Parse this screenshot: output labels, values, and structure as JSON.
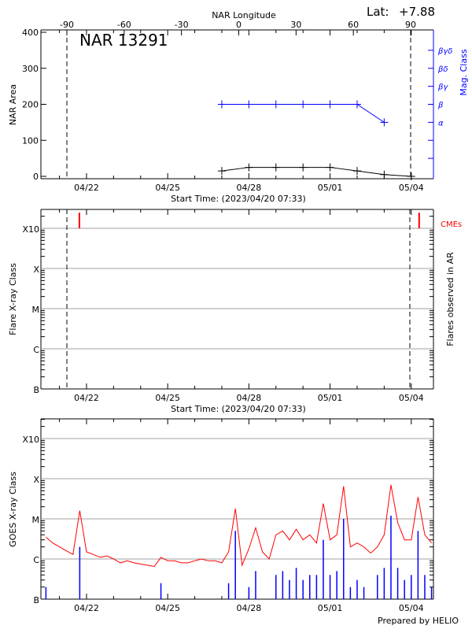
{
  "chart_data": [
    {
      "type": "line",
      "title": "NAR 13291",
      "lat_label": "Lat:",
      "lat_value": "+7.88",
      "top_axis_label": "NAR Longitude",
      "top_ticks": [
        -90,
        -60,
        -30,
        0,
        30,
        60,
        90
      ],
      "xlabel": "Start Time: (2023/04/20 07:33)",
      "x_ticks": [
        "04/22",
        "04/25",
        "04/28",
        "05/01",
        "05/04"
      ],
      "x_tick_dates": [
        "2023-04-22 00:00",
        "2023-04-25 00:00",
        "2023-04-28 00:00",
        "2023-05-01 00:00",
        "2023-05-04 00:00"
      ],
      "xlim": [
        "2023-04-20 07:33",
        "2023-05-04 19:30"
      ],
      "ylabel": "NAR Area",
      "ylim": [
        0,
        400
      ],
      "y_ticks": [
        0,
        100,
        200,
        300,
        400
      ],
      "y2label": "Mag. Class",
      "y2_ticks": [
        {
          "label": "α",
          "value": 150
        },
        {
          "label": "β",
          "value": 200
        },
        {
          "label": "βγ",
          "value": 250
        },
        {
          "label": "βδ",
          "value": 300
        },
        {
          "label": "βγδ",
          "value": 350
        }
      ],
      "limb_longitudes": [
        -90,
        90
      ],
      "series": [
        {
          "color": "#000000",
          "x": [
            "2023-04-27 00:00",
            "2023-04-28 00:00",
            "2023-04-29 00:00",
            "2023-04-30 00:00",
            "2023-05-01 00:00",
            "2023-05-02 00:00",
            "2023-05-03 00:00",
            "2023-05-04 00:00"
          ],
          "values": [
            15,
            25,
            25,
            25,
            25,
            15,
            5,
            0
          ]
        },
        {
          "color": "#0000ff",
          "x": [
            "2023-04-27 00:00",
            "2023-04-28 00:00",
            "2023-04-29 00:00",
            "2023-04-30 00:00",
            "2023-05-01 00:00",
            "2023-05-02 00:00",
            "2023-05-03 00:00"
          ],
          "values": [
            200,
            200,
            200,
            200,
            200,
            200,
            150
          ]
        }
      ]
    },
    {
      "type": "scatter",
      "xlabel": "Start Time: (2023/04/20 07:33)",
      "x_ticks": [
        "04/22",
        "04/25",
        "04/28",
        "05/01",
        "05/04"
      ],
      "ylabel": "Flare X-ray Class",
      "y2label": "Flares observed in AR",
      "y_ticks": [
        "B",
        "C",
        "M",
        "X",
        "X10"
      ],
      "yscale": "log",
      "grid": true,
      "cme_label": "CMEs",
      "cme_color": "#ff0000",
      "cmes": [
        "2023-04-21 17:40",
        "2023-05-04 07:00"
      ],
      "flares": []
    },
    {
      "type": "line",
      "ylabel": "GOES X-ray Class",
      "x_ticks": [
        "04/22",
        "04/25",
        "04/28",
        "05/01",
        "05/04"
      ],
      "y_ticks": [
        "B",
        "C",
        "M",
        "X",
        "X10"
      ],
      "yscale": "log",
      "grid": true,
      "footer": "Prepared by HELIO",
      "x": [
        "2023-04-20 12:00",
        "2023-04-20 18:00",
        "2023-04-21 00:00",
        "2023-04-21 06:00",
        "2023-04-21 12:00",
        "2023-04-21 18:00",
        "2023-04-22 00:00",
        "2023-04-22 06:00",
        "2023-04-22 12:00",
        "2023-04-22 18:00",
        "2023-04-23 00:00",
        "2023-04-23 06:00",
        "2023-04-23 12:00",
        "2023-04-23 18:00",
        "2023-04-24 00:00",
        "2023-04-24 06:00",
        "2023-04-24 12:00",
        "2023-04-24 18:00",
        "2023-04-25 00:00",
        "2023-04-25 06:00",
        "2023-04-25 12:00",
        "2023-04-25 18:00",
        "2023-04-26 00:00",
        "2023-04-26 06:00",
        "2023-04-26 12:00",
        "2023-04-26 18:00",
        "2023-04-27 00:00",
        "2023-04-27 06:00",
        "2023-04-27 12:00",
        "2023-04-27 18:00",
        "2023-04-28 00:00",
        "2023-04-28 06:00",
        "2023-04-28 12:00",
        "2023-04-28 18:00",
        "2023-04-29 00:00",
        "2023-04-29 06:00",
        "2023-04-29 12:00",
        "2023-04-29 18:00",
        "2023-04-30 00:00",
        "2023-04-30 06:00",
        "2023-04-30 12:00",
        "2023-04-30 18:00",
        "2023-05-01 00:00",
        "2023-05-01 06:00",
        "2023-05-01 12:00",
        "2023-05-01 18:00",
        "2023-05-02 00:00",
        "2023-05-02 06:00",
        "2023-05-02 12:00",
        "2023-05-02 18:00",
        "2023-05-03 00:00",
        "2023-05-03 06:00",
        "2023-05-03 12:00",
        "2023-05-03 18:00",
        "2023-05-04 00:00",
        "2023-05-04 06:00",
        "2023-05-04 12:00",
        "2023-05-04 18:00"
      ],
      "series": [
        {
          "color": "#ff0000",
          "values": [
            3.5e-06,
            2.5e-06,
            2e-06,
            1.6e-06,
            1.3e-06,
            1.6e-05,
            1.5e-06,
            1.3e-06,
            1.1e-06,
            1.2e-06,
            1e-06,
            8e-07,
            9e-07,
            8e-07,
            7.5e-07,
            7e-07,
            6.5e-07,
            1.1e-06,
            9e-07,
            9e-07,
            8e-07,
            8e-07,
            9e-07,
            1e-06,
            9e-07,
            9e-07,
            8e-07,
            1.5e-06,
            1.8e-05,
            7e-07,
            1.8e-06,
            6e-06,
            1.5e-06,
            1e-06,
            4e-06,
            5e-06,
            3e-06,
            5.5e-06,
            3e-06,
            4e-06,
            2.5e-06,
            2.4e-05,
            3e-06,
            4e-06,
            6.5e-05,
            2e-06,
            2.5e-06,
            2e-06,
            1.4e-06,
            2e-06,
            4e-06,
            7e-05,
            8e-06,
            3e-06,
            3e-06,
            3.5e-05,
            4e-06,
            2.5e-06
          ]
        },
        {
          "color": "#0000ff",
          "values": [
            2e-07,
            1e-07,
            1e-07,
            1e-07,
            1e-07,
            2e-06,
            1e-07,
            1e-07,
            1e-07,
            1e-07,
            1e-07,
            1e-07,
            1e-07,
            1e-07,
            1e-07,
            1e-07,
            1e-07,
            2.5e-07,
            1e-07,
            1e-07,
            1e-07,
            1e-07,
            1e-07,
            1e-07,
            1e-07,
            1e-07,
            1e-07,
            2.5e-07,
            5e-06,
            1e-07,
            2e-07,
            5e-07,
            1e-07,
            1e-07,
            4e-07,
            5e-07,
            3e-07,
            6e-07,
            3e-07,
            4e-07,
            4e-07,
            3e-06,
            4e-07,
            5e-07,
            1e-05,
            2e-07,
            3e-07,
            2e-07,
            1e-07,
            4e-07,
            6e-07,
            1.2e-05,
            6e-07,
            3e-07,
            4e-07,
            5e-06,
            4e-07,
            2e-07
          ]
        }
      ]
    }
  ]
}
